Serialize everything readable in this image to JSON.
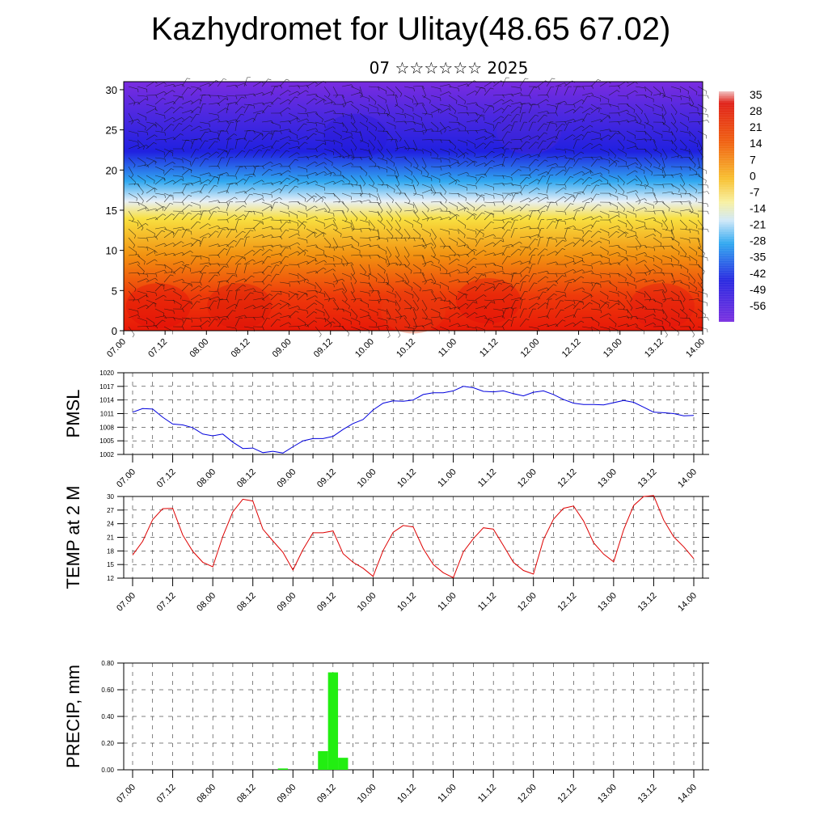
{
  "header": {
    "title": "Kazhydromet for Ulitay(48.65 67.02)",
    "subtitle": "07 ☆☆☆☆☆☆ 2025"
  },
  "chart_data": [
    {
      "type": "heatmap",
      "title": "",
      "xlabel": "",
      "ylabel": "",
      "x_ticks": [
        "07.00",
        "07.12",
        "08.00",
        "08.12",
        "09.00",
        "09.12",
        "10.00",
        "10.12",
        "11.00",
        "11.12",
        "12.00",
        "12.12",
        "13.00",
        "13.12",
        "14.00"
      ],
      "y_ticks": [
        0,
        5,
        10,
        15,
        20,
        25,
        30
      ],
      "ylim": [
        0,
        31
      ],
      "colorbar_labels": [
        35,
        28,
        21,
        14,
        7,
        0,
        -7,
        -14,
        -21,
        -28,
        -35,
        -42,
        -49,
        -56
      ],
      "wind_barbs": true,
      "colors": {
        "low": "#7a2ce0",
        "blue": "#2020e0",
        "light_blue": "#30a8f0",
        "pale": "#e8f0f8",
        "yellow": "#f8e040",
        "orange": "#f29010",
        "red": "#e81808"
      }
    },
    {
      "type": "line",
      "ylabel": "PMSL",
      "y_ticks": [
        1002,
        1005,
        1008,
        1011,
        1014,
        1017,
        1020
      ],
      "ylim": [
        1002,
        1020
      ],
      "x_ticks": [
        "07.00",
        "07.12",
        "08.00",
        "08.12",
        "09.00",
        "09.12",
        "10.00",
        "10.12",
        "11.00",
        "11.12",
        "12.00",
        "12.12",
        "13.00",
        "13.12",
        "14.00"
      ],
      "series_color": "#0000dd",
      "values": [
        1011.3,
        1012.1,
        1012.0,
        1010.2,
        1008.7,
        1008.5,
        1007.9,
        1006.5,
        1006.1,
        1006.5,
        1004.7,
        1003.3,
        1003.4,
        1002.4,
        1002.7,
        1002.3,
        1003.7,
        1005.0,
        1005.5,
        1005.5,
        1006.0,
        1007.5,
        1008.8,
        1009.7,
        1011.8,
        1013.3,
        1013.8,
        1013.7,
        1014.0,
        1015.2,
        1015.6,
        1015.6,
        1016.0,
        1017.0,
        1016.7,
        1015.9,
        1015.8,
        1016.0,
        1015.4,
        1014.9,
        1015.7,
        1016.0,
        1015.2,
        1014.1,
        1013.3,
        1013.0,
        1013.0,
        1012.9,
        1013.4,
        1013.9,
        1013.5,
        1012.4,
        1011.3,
        1011.2,
        1011.0,
        1010.5,
        1010.6
      ]
    },
    {
      "type": "line",
      "ylabel": "TEMP at 2 M",
      "y_ticks": [
        12,
        15,
        18,
        21,
        24,
        27,
        30
      ],
      "ylim": [
        12,
        30
      ],
      "x_ticks": [
        "07.00",
        "07.12",
        "08.00",
        "08.12",
        "09.00",
        "09.12",
        "10.00",
        "10.12",
        "11.00",
        "11.12",
        "12.00",
        "12.12",
        "13.00",
        "13.12",
        "14.00"
      ],
      "series_color": "#dd0000",
      "values": [
        17.1,
        20.1,
        24.9,
        27.3,
        27.4,
        21.5,
        17.9,
        15.5,
        14.5,
        21.2,
        26.6,
        29.4,
        29.0,
        22.8,
        20.2,
        17.7,
        13.8,
        18.3,
        22.0,
        22.0,
        22.4,
        17.4,
        15.5,
        14.2,
        12.4,
        18.1,
        22.1,
        23.6,
        23.3,
        18.5,
        15.0,
        13.2,
        12.1,
        17.8,
        20.7,
        23.1,
        22.8,
        19.2,
        15.5,
        13.7,
        12.9,
        20.5,
        25.0,
        27.4,
        27.9,
        24.6,
        19.8,
        17.3,
        15.6,
        22.7,
        28.0,
        30.0,
        30.2,
        24.8,
        21.1,
        18.9,
        16.3
      ]
    },
    {
      "type": "bar",
      "ylabel": "PRECIP, mm",
      "y_ticks": [
        "0.00",
        "0.20",
        "0.40",
        "0.60",
        "0.80"
      ],
      "ylim": [
        0,
        0.8
      ],
      "x_ticks": [
        "07.00",
        "07.12",
        "08.00",
        "08.12",
        "09.00",
        "09.12",
        "10.00",
        "10.12",
        "11.00",
        "11.12",
        "12.00",
        "12.12",
        "13.00",
        "13.12",
        "14.00"
      ],
      "bar_color": "#22ee11",
      "values": [
        0,
        0,
        0,
        0,
        0,
        0,
        0,
        0,
        0,
        0,
        0,
        0,
        0,
        0,
        0,
        0.01,
        0,
        0,
        0,
        0.14,
        0.73,
        0.09,
        0,
        0,
        0,
        0,
        0,
        0,
        0,
        0,
        0,
        0,
        0,
        0,
        0,
        0,
        0,
        0,
        0,
        0,
        0,
        0,
        0,
        0,
        0,
        0,
        0,
        0,
        0,
        0,
        0,
        0,
        0,
        0,
        0,
        0,
        0
      ]
    }
  ]
}
